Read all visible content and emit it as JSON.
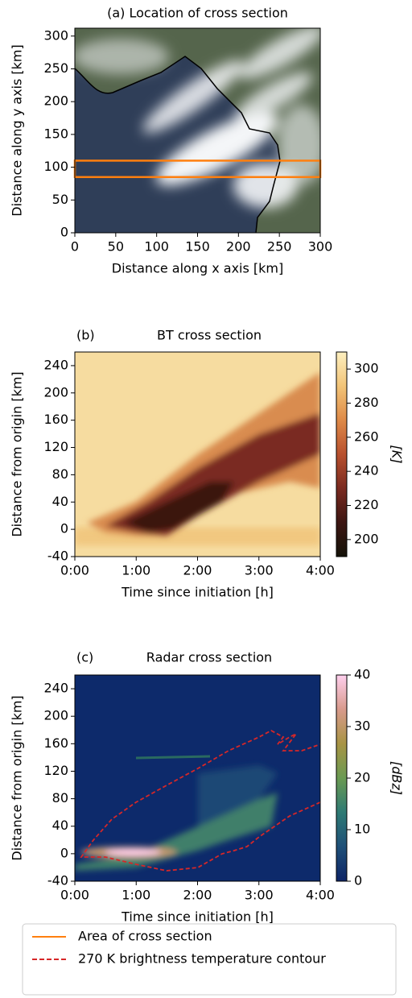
{
  "chart_data": [
    {
      "type": "image",
      "title": "(a)  Location of cross section",
      "xlabel": "Distance along x axis [km]",
      "ylabel": "Distance along y axis [km]",
      "xlim": [
        0,
        300
      ],
      "ylim": [
        0,
        312
      ],
      "xticks": [
        0,
        50,
        100,
        150,
        200,
        250,
        300
      ],
      "yticks": [
        0,
        50,
        100,
        150,
        200,
        250,
        300
      ],
      "highlight": {
        "x": [
          0,
          300
        ],
        "y": [
          85,
          110
        ]
      }
    },
    {
      "type": "heatmap",
      "panel_label": "(b)",
      "title": "BT cross section",
      "xlabel": "Time since initiation [h]",
      "ylabel": "Distance from origin [km]",
      "xlim": [
        0,
        4
      ],
      "ylim": [
        -40,
        260
      ],
      "xticks": [
        {
          "value": 0,
          "label": "0:00"
        },
        {
          "value": 1,
          "label": "1:00"
        },
        {
          "value": 2,
          "label": "2:00"
        },
        {
          "value": 3,
          "label": "3:00"
        },
        {
          "value": 4,
          "label": "4:00"
        }
      ],
      "yticks": [
        -40,
        0,
        40,
        80,
        120,
        160,
        200,
        240
      ],
      "colorbar": {
        "label": "[K]",
        "lim": [
          190,
          310
        ],
        "ticks": [
          200,
          220,
          240,
          260,
          280,
          300
        ],
        "colors": [
          "#141208",
          "#3c1612",
          "#7a2a20",
          "#b8502e",
          "#de8a48",
          "#f2c478",
          "#fdf0c0"
        ]
      }
    },
    {
      "type": "heatmap",
      "panel_label": "(c)",
      "title": "Radar cross section",
      "xlabel": "Time since initiation [h]",
      "ylabel": "Distance from origin [km]",
      "xlim": [
        0,
        4
      ],
      "ylim": [
        -40,
        260
      ],
      "xticks": [
        {
          "value": 0,
          "label": "0:00"
        },
        {
          "value": 1,
          "label": "1:00"
        },
        {
          "value": 2,
          "label": "2:00"
        },
        {
          "value": 3,
          "label": "3:00"
        },
        {
          "value": 4,
          "label": "4:00"
        }
      ],
      "yticks": [
        -40,
        0,
        40,
        80,
        120,
        160,
        200,
        240
      ],
      "colorbar": {
        "label": "[dBz]",
        "lim": [
          0,
          40
        ],
        "ticks": [
          0,
          10,
          20,
          30,
          40
        ],
        "colors": [
          "#0d2466",
          "#1f4f78",
          "#2e7a74",
          "#6a9a52",
          "#a89444",
          "#d89a8c",
          "#ffd0ee"
        ]
      }
    }
  ],
  "legend": [
    {
      "label": "Area of cross section",
      "color": "#ff7f0e",
      "style": "solid"
    },
    {
      "label": "270 K brightness temperature contour",
      "color": "#d62728",
      "style": "dashed"
    }
  ]
}
